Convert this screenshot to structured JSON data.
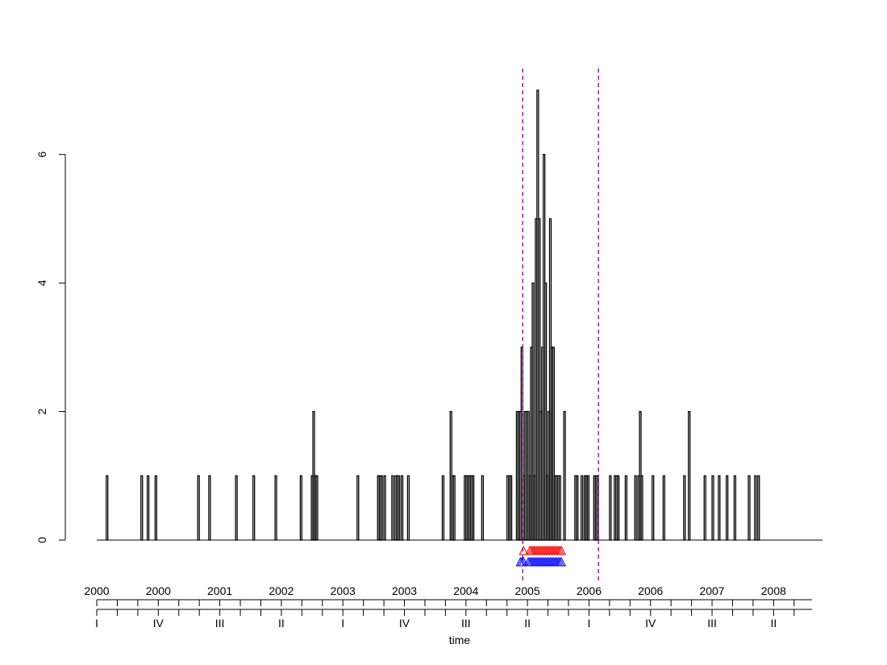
{
  "chart_data": {
    "type": "bar",
    "title": "",
    "xlabel": "time",
    "ylabel": "",
    "ylim": [
      0,
      7
    ],
    "yticks": [
      0,
      2,
      4,
      6
    ],
    "start_week": "2000-W01",
    "week_count": 460,
    "values": [
      0,
      0,
      0,
      0,
      0,
      0,
      1,
      0,
      0,
      0,
      0,
      0,
      0,
      0,
      0,
      0,
      0,
      0,
      0,
      0,
      0,
      0,
      0,
      0,
      0,
      0,
      0,
      0,
      1,
      0,
      0,
      0,
      1,
      0,
      0,
      0,
      0,
      1,
      0,
      0,
      0,
      0,
      0,
      0,
      0,
      0,
      0,
      0,
      0,
      0,
      0,
      0,
      0,
      0,
      0,
      0,
      0,
      0,
      0,
      0,
      0,
      0,
      0,
      0,
      1,
      0,
      0,
      0,
      0,
      0,
      0,
      1,
      0,
      0,
      0,
      0,
      0,
      0,
      0,
      0,
      0,
      0,
      0,
      0,
      0,
      0,
      0,
      0,
      1,
      0,
      0,
      0,
      0,
      0,
      0,
      0,
      0,
      0,
      0,
      1,
      0,
      0,
      0,
      0,
      0,
      0,
      0,
      0,
      0,
      0,
      0,
      0,
      0,
      1,
      0,
      0,
      0,
      0,
      0,
      0,
      0,
      0,
      0,
      0,
      0,
      0,
      0,
      0,
      0,
      1,
      0,
      0,
      0,
      0,
      0,
      0,
      1,
      2,
      1,
      1,
      0,
      0,
      0,
      0,
      0,
      0,
      0,
      0,
      0,
      0,
      0,
      0,
      0,
      0,
      0,
      0,
      0,
      0,
      0,
      0,
      0,
      0,
      0,
      0,
      0,
      1,
      0,
      0,
      0,
      0,
      0,
      0,
      0,
      0,
      0,
      0,
      0,
      0,
      1,
      1,
      1,
      0,
      1,
      0,
      0,
      0,
      0,
      1,
      0,
      0,
      0,
      0,
      0,
      0,
      0,
      0,
      0,
      0,
      0,
      0,
      0,
      0,
      0,
      0,
      0,
      0,
      0,
      0,
      0,
      0,
      0,
      0,
      0,
      0,
      0,
      0,
      0,
      0,
      0,
      0,
      0,
      0,
      0,
      0,
      0,
      1,
      0,
      0,
      0,
      0,
      0,
      0,
      0,
      0,
      0,
      0,
      0,
      0,
      0,
      0,
      0,
      0,
      0,
      0,
      0,
      0,
      0,
      0,
      0,
      0,
      0,
      0,
      0,
      0,
      0,
      0,
      0,
      0,
      0,
      0,
      0,
      0,
      0,
      0,
      0,
      0,
      0,
      0,
      0,
      0,
      0,
      0,
      0,
      0,
      0,
      0,
      0,
      0,
      0,
      0,
      0,
      0,
      0,
      0,
      0,
      0,
      0,
      0,
      0,
      0,
      0,
      0,
      0,
      0,
      0,
      0,
      0,
      0,
      0,
      0,
      0,
      0,
      0,
      0,
      0,
      0,
      0,
      0,
      0,
      0,
      0,
      0,
      0,
      0,
      0,
      0,
      0,
      0,
      0,
      0,
      0,
      0,
      0,
      0,
      0,
      0,
      0,
      0,
      0,
      0,
      0,
      0,
      0,
      0,
      0,
      0,
      0,
      0,
      0,
      0,
      0,
      0,
      0,
      0,
      0,
      0,
      0,
      0,
      0,
      0,
      0,
      0,
      0,
      0,
      0,
      0,
      0,
      0,
      0,
      0,
      0,
      0,
      0,
      0,
      0,
      0,
      0,
      0,
      0,
      0,
      0,
      0,
      0,
      0,
      0,
      0,
      0,
      0,
      0,
      0,
      0,
      0,
      0,
      0,
      0,
      0,
      0,
      0,
      0,
      0,
      0,
      0,
      0,
      0,
      0,
      0,
      0,
      0,
      0,
      0,
      0,
      0,
      0,
      0,
      0,
      0,
      0,
      0,
      0,
      0,
      0,
      0,
      0,
      0,
      0,
      0,
      0,
      0,
      0,
      0,
      0,
      0,
      0,
      0,
      0,
      0,
      0,
      0,
      0,
      0,
      0,
      0,
      0,
      0,
      0,
      0,
      0,
      0,
      0,
      0,
      0,
      0,
      0,
      0,
      0,
      0,
      0,
      0,
      0,
      0,
      0,
      0,
      0,
      0,
      0,
      0,
      0,
      0,
      0,
      0,
      0,
      0,
      0,
      0,
      0,
      0,
      0,
      0,
      0,
      0,
      0,
      0,
      0,
      0,
      0,
      0,
      0,
      0,
      0,
      0
    ],
    "value_overrides": [
      {
        "week": "2003-W34",
        "value": 1
      },
      {
        "week": "2003-W35",
        "value": 1
      },
      {
        "week": "2003-W36",
        "value": 1
      },
      {
        "week": "2003-W38",
        "value": 1
      },
      {
        "week": "2003-W42",
        "value": 1
      },
      {
        "week": "2004-W12",
        "value": 1
      },
      {
        "week": "2004-W17",
        "value": 2
      },
      {
        "week": "2004-W19",
        "value": 1
      },
      {
        "week": "2004-W26",
        "value": 1
      },
      {
        "week": "2004-W27",
        "value": 1
      },
      {
        "week": "2004-W28",
        "value": 1
      },
      {
        "week": "2004-W29",
        "value": 1
      },
      {
        "week": "2004-W30",
        "value": 1
      },
      {
        "week": "2004-W31",
        "value": 1
      },
      {
        "week": "2004-W37",
        "value": 1
      },
      {
        "week": "2005-W01",
        "value": 1
      },
      {
        "week": "2005-W02",
        "value": 1
      },
      {
        "week": "2005-W03",
        "value": 1
      },
      {
        "week": "2005-W07",
        "value": 2
      },
      {
        "week": "2005-W08",
        "value": 2
      },
      {
        "week": "2005-W09",
        "value": 2
      },
      {
        "week": "2005-W10",
        "value": 3
      },
      {
        "week": "2005-W11",
        "value": 1
      },
      {
        "week": "2005-W12",
        "value": 2
      },
      {
        "week": "2005-W13",
        "value": 2
      },
      {
        "week": "2005-W14",
        "value": 2
      },
      {
        "week": "2005-W15",
        "value": 1
      },
      {
        "week": "2005-W16",
        "value": 3
      },
      {
        "week": "2005-W17",
        "value": 4
      },
      {
        "week": "2005-W18",
        "value": 1
      },
      {
        "week": "2005-W19",
        "value": 5
      },
      {
        "week": "2005-W20",
        "value": 7
      },
      {
        "week": "2005-W21",
        "value": 5
      },
      {
        "week": "2005-W22",
        "value": 2
      },
      {
        "week": "2005-W23",
        "value": 3
      },
      {
        "week": "2005-W24",
        "value": 6
      },
      {
        "week": "2005-W25",
        "value": 4
      },
      {
        "week": "2005-W26",
        "value": 1
      },
      {
        "week": "2005-W27",
        "value": 2
      },
      {
        "week": "2005-W28",
        "value": 5
      },
      {
        "week": "2005-W29",
        "value": 3
      },
      {
        "week": "2005-W30",
        "value": 3
      },
      {
        "week": "2005-W31",
        "value": 1
      },
      {
        "week": "2005-W32",
        "value": 1
      },
      {
        "week": "2005-W33",
        "value": 1
      },
      {
        "week": "2005-W34",
        "value": 1
      },
      {
        "week": "2005-W37",
        "value": 2
      },
      {
        "week": "2005-W44",
        "value": 1
      },
      {
        "week": "2005-W45",
        "value": 1
      },
      {
        "week": "2005-W48",
        "value": 1
      },
      {
        "week": "2005-W50",
        "value": 1
      },
      {
        "week": "2005-W51",
        "value": 1
      },
      {
        "week": "2005-W52",
        "value": 1
      },
      {
        "week": "2006-W04",
        "value": 1
      },
      {
        "week": "2006-W05",
        "value": 1
      },
      {
        "week": "2006-W06",
        "value": 1
      },
      {
        "week": "2006-W14",
        "value": 1
      },
      {
        "week": "2006-W17",
        "value": 1
      },
      {
        "week": "2006-W18",
        "value": 1
      },
      {
        "week": "2006-W19",
        "value": 1
      },
      {
        "week": "2006-W24",
        "value": 1
      },
      {
        "week": "2006-W30",
        "value": 1
      },
      {
        "week": "2006-W32",
        "value": 1
      },
      {
        "week": "2006-W33",
        "value": 2
      },
      {
        "week": "2006-W34",
        "value": 1
      },
      {
        "week": "2006-W41",
        "value": 1
      },
      {
        "week": "2006-W48",
        "value": 1
      },
      {
        "week": "2007-W09",
        "value": 1
      },
      {
        "week": "2007-W12",
        "value": 2
      },
      {
        "week": "2007-W22",
        "value": 1
      },
      {
        "week": "2007-W27",
        "value": 1
      },
      {
        "week": "2007-W31",
        "value": 1
      },
      {
        "week": "2007-W36",
        "value": 1
      },
      {
        "week": "2007-W41",
        "value": 1
      },
      {
        "week": "2007-W50",
        "value": 1
      },
      {
        "week": "2008-W02",
        "value": 1
      },
      {
        "week": "2008-W04",
        "value": 1
      }
    ],
    "alarm_lines": {
      "color": "#8b008b",
      "weeks": [
        "2005-W11",
        "2006-W07"
      ],
      "style": "dashed"
    },
    "alarm_markers": [
      {
        "name": "",
        "color": "#ff0000",
        "row": 1,
        "weeks": [
          "2005-W11",
          "2005-W15",
          "2005-W16",
          "2005-W17",
          "2005-W18",
          "2005-W19",
          "2005-W20",
          "2005-W21",
          "2005-W22",
          "2005-W23",
          "2005-W24",
          "2005-W25",
          "2005-W26",
          "2005-W27",
          "2005-W28",
          "2005-W29",
          "2005-W30",
          "2005-W31",
          "2005-W32",
          "2005-W33",
          "2005-W34",
          "2005-W35"
        ]
      },
      {
        "name": "",
        "color": "#0000ff",
        "row": 2,
        "weeks": [
          "2005-W09",
          "2005-W10",
          "2005-W11",
          "2005-W14",
          "2005-W15",
          "2005-W16",
          "2005-W17",
          "2005-W18",
          "2005-W19",
          "2005-W20",
          "2005-W21",
          "2005-W22",
          "2005-W23",
          "2005-W24",
          "2005-W25",
          "2005-W26",
          "2005-W27",
          "2005-W28",
          "2005-W29",
          "2005-W30",
          "2005-W31",
          "2005-W32",
          "2005-W33",
          "2005-W34",
          "2005-W35"
        ]
      }
    ],
    "year_labels": [
      {
        "week": "2000-W01",
        "label": "2000"
      },
      {
        "week": "2000-W40",
        "label": "2000"
      },
      {
        "week": "2001-W27",
        "label": "2001"
      },
      {
        "week": "2002-W14",
        "label": "2002"
      },
      {
        "week": "2003-W01",
        "label": "2003"
      },
      {
        "week": "2003-W40",
        "label": "2003"
      },
      {
        "week": "2004-W27",
        "label": "2004"
      },
      {
        "week": "2005-W14",
        "label": "2005"
      },
      {
        "week": "2006-W01",
        "label": "2006"
      },
      {
        "week": "2006-W40",
        "label": "2006"
      },
      {
        "week": "2007-W27",
        "label": "2007"
      },
      {
        "week": "2008-W14",
        "label": "2008"
      }
    ],
    "quarter_labels": [
      {
        "week": "2000-W01",
        "label": "I"
      },
      {
        "week": "2000-W40",
        "label": "IV"
      },
      {
        "week": "2001-W27",
        "label": "III"
      },
      {
        "week": "2002-W14",
        "label": "II"
      },
      {
        "week": "2003-W01",
        "label": "I"
      },
      {
        "week": "2003-W40",
        "label": "IV"
      },
      {
        "week": "2004-W27",
        "label": "III"
      },
      {
        "week": "2005-W14",
        "label": "II"
      },
      {
        "week": "2006-W01",
        "label": "I"
      },
      {
        "week": "2006-W40",
        "label": "IV"
      },
      {
        "week": "2007-W27",
        "label": "III"
      },
      {
        "week": "2008-W14",
        "label": "II"
      }
    ]
  }
}
